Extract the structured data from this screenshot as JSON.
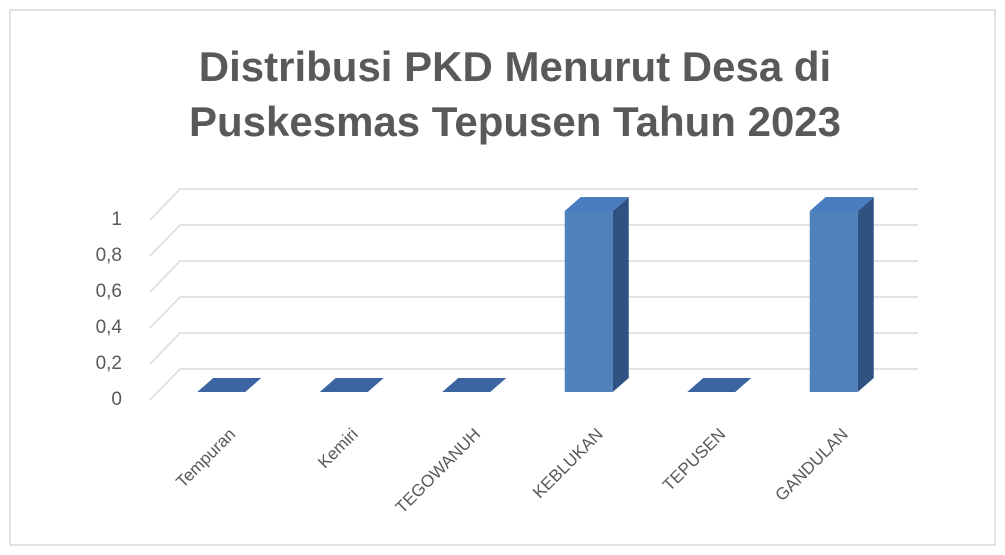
{
  "chart_data": {
    "type": "bar3d",
    "title": [
      "Distribusi PKD Menurut Desa di",
      "Puskesmas Tepusen Tahun 2023"
    ],
    "categories": [
      "Tempuran",
      "Kemiri",
      "TEGOWANUH",
      "KEBLUKAN",
      "TEPUSEN",
      "GANDULAN"
    ],
    "values": [
      0,
      0,
      0,
      1,
      0,
      1
    ],
    "color": "#4f81bd",
    "ylim": [
      0,
      1
    ],
    "yticks": [
      0,
      {
        "value": 0.2,
        "label": "0,2"
      },
      {
        "value": 0.4,
        "label": "0,4"
      },
      {
        "value": 0.6,
        "label": "0,6"
      },
      {
        "value": 0.8,
        "label": "0,8"
      },
      1
    ],
    "grid": true
  }
}
